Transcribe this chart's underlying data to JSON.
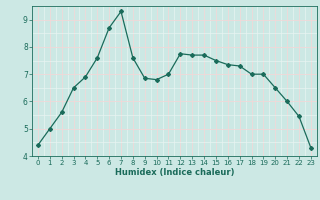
{
  "x": [
    0,
    1,
    2,
    3,
    4,
    5,
    6,
    7,
    8,
    9,
    10,
    11,
    12,
    13,
    14,
    15,
    16,
    17,
    18,
    19,
    20,
    21,
    22,
    23
  ],
  "y": [
    4.4,
    5.0,
    5.6,
    6.5,
    6.9,
    7.6,
    8.7,
    9.3,
    7.6,
    6.85,
    6.8,
    7.0,
    7.75,
    7.7,
    7.7,
    7.5,
    7.35,
    7.3,
    7.0,
    7.0,
    6.5,
    6.0,
    5.45,
    4.3
  ],
  "xlabel": "Humidex (Indice chaleur)",
  "ylim": [
    4,
    9.5
  ],
  "xlim": [
    -0.5,
    23.5
  ],
  "bg_color": "#cce8e4",
  "line_color": "#1a6b5a",
  "grid_major_color": "#f0d8d8",
  "grid_minor_color": "#e8f4f2",
  "yticks": [
    4,
    5,
    6,
    7,
    8,
    9
  ],
  "xticks": [
    0,
    1,
    2,
    3,
    4,
    5,
    6,
    7,
    8,
    9,
    10,
    11,
    12,
    13,
    14,
    15,
    16,
    17,
    18,
    19,
    20,
    21,
    22,
    23
  ]
}
